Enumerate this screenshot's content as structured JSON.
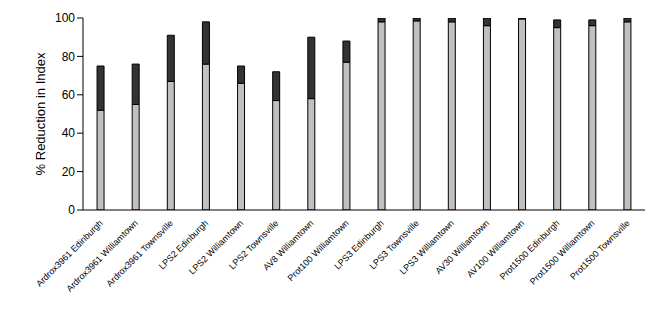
{
  "chart_data": {
    "type": "bar",
    "y_label": "% Reduction in Index",
    "categories": [
      "Ardrox3961 Edinburgh",
      "Ardrox3961 Williamtown",
      "Ardrox3961 Townsville",
      "LPS2 Edinburgh",
      "LPS2 Williamtown",
      "LPS2 Townsville",
      "AV8 Williamtown",
      "Prot100 Williamtown",
      "LPS3 Edinburgh",
      "LPS3 Townsville",
      "LPS3 Williamtown",
      "AV30 Williamtown",
      "AV100 Williamtown",
      "Prot1500 Edinburgh",
      "Prot1500 Williamtown",
      "Prot1500 Townsville"
    ],
    "series": [
      {
        "color": "#c0c0c0",
        "values": [
          52,
          55,
          67,
          76,
          66,
          57,
          58,
          77,
          98,
          98.5,
          98,
          96,
          99.5,
          95,
          96,
          98
        ]
      },
      {
        "color": "#333333",
        "values": [
          23,
          21,
          24,
          22,
          9,
          15,
          32,
          11,
          2,
          1.5,
          2,
          4,
          0.5,
          4,
          3,
          2
        ]
      }
    ],
    "stacked": true,
    "ylim": [
      0,
      100
    ],
    "yticks": [
      0,
      20,
      40,
      60,
      80,
      100
    ],
    "grid": false
  }
}
